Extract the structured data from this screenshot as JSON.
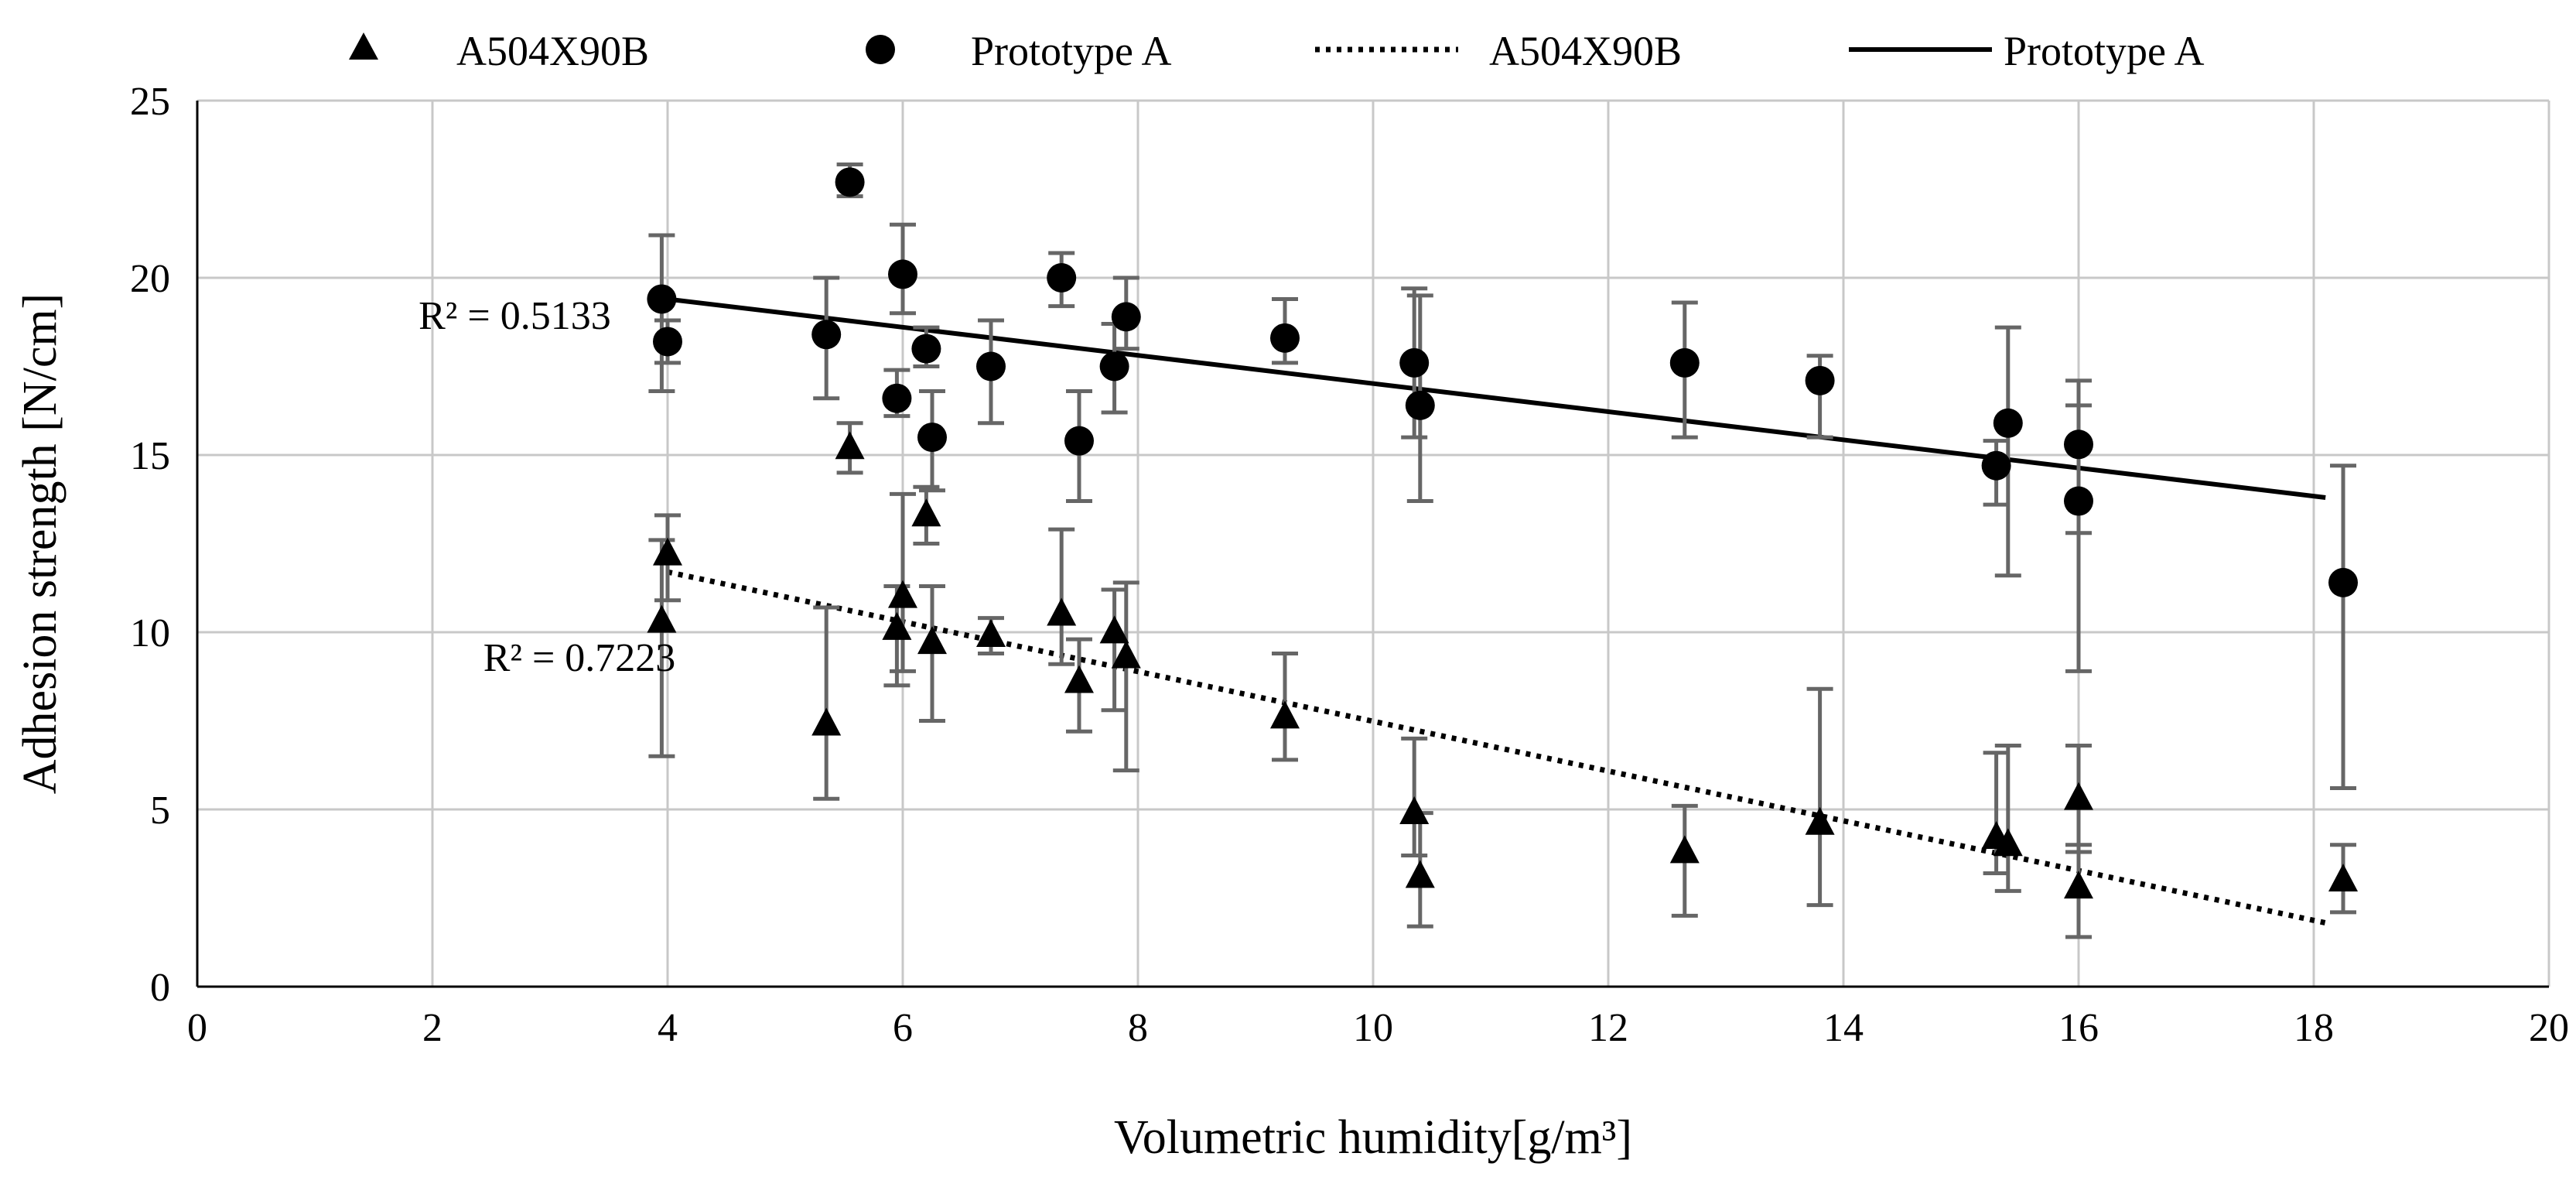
{
  "chart_data": {
    "type": "scatter",
    "title": "",
    "xlabel": "Volumetric humidity[g/m³]",
    "ylabel": "Adhesion strength [N/cm]",
    "xlim": [
      0,
      20
    ],
    "ylim": [
      0,
      25
    ],
    "xticks": [
      "0",
      "2",
      "4",
      "6",
      "8",
      "10",
      "12",
      "14",
      "16",
      "18",
      "20"
    ],
    "yticks": [
      "0",
      "5",
      "10",
      "15",
      "20",
      "25"
    ],
    "grid": true,
    "legend_position": "top",
    "legend": [
      {
        "label": "A504X90B",
        "kind": "triangle-marker"
      },
      {
        "label": "Prototype A",
        "kind": "circle-marker"
      },
      {
        "label": "A504X90B",
        "kind": "dotted-trendline"
      },
      {
        "label": "Prototype A",
        "kind": "solid-trendline"
      }
    ],
    "series": [
      {
        "name": "A504X90B",
        "marker": "triangle",
        "points": [
          {
            "x": 3.95,
            "y": 10.3,
            "lo": 6.5,
            "hi": 12.6
          },
          {
            "x": 4.0,
            "y": 12.2,
            "lo": 10.9,
            "hi": 13.3
          },
          {
            "x": 5.35,
            "y": 7.4,
            "lo": 5.3,
            "hi": 10.7
          },
          {
            "x": 5.55,
            "y": 15.2,
            "lo": 14.5,
            "hi": 15.9
          },
          {
            "x": 5.95,
            "y": 10.1,
            "lo": 8.5,
            "hi": 11.3
          },
          {
            "x": 6.0,
            "y": 11.0,
            "lo": 8.9,
            "hi": 13.9
          },
          {
            "x": 6.2,
            "y": 13.3,
            "lo": 12.5,
            "hi": 14.1
          },
          {
            "x": 6.25,
            "y": 9.7,
            "lo": 7.5,
            "hi": 11.3
          },
          {
            "x": 6.75,
            "y": 9.9,
            "lo": 9.4,
            "hi": 10.4
          },
          {
            "x": 7.35,
            "y": 10.5,
            "lo": 9.1,
            "hi": 12.9
          },
          {
            "x": 7.5,
            "y": 8.6,
            "lo": 7.2,
            "hi": 9.8
          },
          {
            "x": 7.8,
            "y": 10.0,
            "lo": 7.8,
            "hi": 11.2
          },
          {
            "x": 7.9,
            "y": 9.3,
            "lo": 6.1,
            "hi": 11.4
          },
          {
            "x": 9.25,
            "y": 7.6,
            "lo": 6.4,
            "hi": 9.4
          },
          {
            "x": 10.35,
            "y": 4.9,
            "lo": 3.7,
            "hi": 7.0
          },
          {
            "x": 10.4,
            "y": 3.1,
            "lo": 1.7,
            "hi": 4.9
          },
          {
            "x": 12.65,
            "y": 3.8,
            "lo": 2.0,
            "hi": 5.1
          },
          {
            "x": 13.8,
            "y": 4.6,
            "lo": 2.3,
            "hi": 8.4
          },
          {
            "x": 15.3,
            "y": 4.2,
            "lo": 3.2,
            "hi": 6.6
          },
          {
            "x": 15.4,
            "y": 4.0,
            "lo": 2.7,
            "hi": 6.8
          },
          {
            "x": 16.0,
            "y": 5.3,
            "lo": 3.8,
            "hi": 6.8
          },
          {
            "x": 16.0,
            "y": 2.8,
            "lo": 1.4,
            "hi": 4.0
          },
          {
            "x": 18.25,
            "y": 3.0,
            "lo": 2.1,
            "hi": 4.0
          }
        ]
      },
      {
        "name": "Prototype A",
        "marker": "circle",
        "points": [
          {
            "x": 3.95,
            "y": 19.4,
            "lo": 16.8,
            "hi": 21.2
          },
          {
            "x": 4.0,
            "y": 18.2,
            "lo": 17.6,
            "hi": 18.8
          },
          {
            "x": 5.35,
            "y": 18.4,
            "lo": 16.6,
            "hi": 20.0
          },
          {
            "x": 5.55,
            "y": 22.7,
            "lo": 22.3,
            "hi": 23.2
          },
          {
            "x": 5.95,
            "y": 16.6,
            "lo": 16.1,
            "hi": 17.4
          },
          {
            "x": 6.0,
            "y": 20.1,
            "lo": 19.0,
            "hi": 21.5
          },
          {
            "x": 6.2,
            "y": 18.0,
            "lo": 17.5,
            "hi": 18.6
          },
          {
            "x": 6.25,
            "y": 15.5,
            "lo": 14.0,
            "hi": 16.8
          },
          {
            "x": 6.75,
            "y": 17.5,
            "lo": 15.9,
            "hi": 18.8
          },
          {
            "x": 7.35,
            "y": 20.0,
            "lo": 19.2,
            "hi": 20.7
          },
          {
            "x": 7.5,
            "y": 15.4,
            "lo": 13.7,
            "hi": 16.8
          },
          {
            "x": 7.8,
            "y": 17.5,
            "lo": 16.2,
            "hi": 18.7
          },
          {
            "x": 7.9,
            "y": 18.9,
            "lo": 18.0,
            "hi": 20.0
          },
          {
            "x": 9.25,
            "y": 18.3,
            "lo": 17.6,
            "hi": 19.4
          },
          {
            "x": 10.35,
            "y": 17.6,
            "lo": 15.5,
            "hi": 19.7
          },
          {
            "x": 10.4,
            "y": 16.4,
            "lo": 13.7,
            "hi": 19.5
          },
          {
            "x": 12.65,
            "y": 17.6,
            "lo": 15.5,
            "hi": 19.3
          },
          {
            "x": 13.8,
            "y": 17.1,
            "lo": 15.5,
            "hi": 17.8
          },
          {
            "x": 15.3,
            "y": 14.7,
            "lo": 13.6,
            "hi": 15.4
          },
          {
            "x": 15.4,
            "y": 15.9,
            "lo": 11.6,
            "hi": 18.6
          },
          {
            "x": 16.0,
            "y": 15.3,
            "lo": 12.8,
            "hi": 17.1
          },
          {
            "x": 16.0,
            "y": 13.7,
            "lo": 8.9,
            "hi": 16.4
          },
          {
            "x": 18.25,
            "y": 11.4,
            "lo": 5.6,
            "hi": 14.7
          }
        ]
      }
    ],
    "trendlines": [
      {
        "name": "A504X90B",
        "style": "dotted",
        "x": [
          4.0,
          18.1
        ],
        "y": [
          11.7,
          1.8
        ],
        "r2": "R² = 0.7223",
        "label_at": {
          "x": 3.25,
          "y": 9.3
        }
      },
      {
        "name": "Prototype A",
        "style": "solid",
        "x": [
          4.0,
          18.1
        ],
        "y": [
          19.4,
          13.8
        ],
        "r2": "R² = 0.5133",
        "label_at": {
          "x": 2.7,
          "y": 18.95
        }
      }
    ]
  }
}
